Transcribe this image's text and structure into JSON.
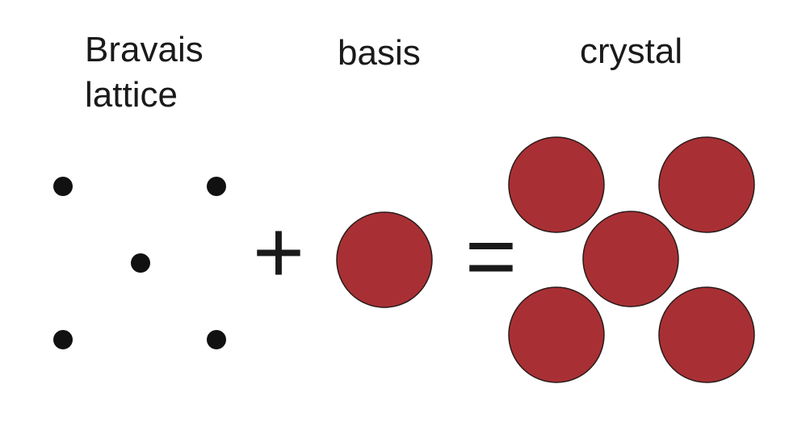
{
  "labels": {
    "bravais_line1": "Bravais",
    "bravais_line2": "lattice",
    "basis": "basis",
    "crystal": "crystal"
  },
  "operators": {
    "plus": "+",
    "equals": "="
  },
  "colors": {
    "atom_fill": "#a83034",
    "atom_stroke": "#2a1a1a",
    "lattice_point": "#111111",
    "text": "#1a1a1a"
  },
  "icons": {
    "lattice_point": "filled-dot",
    "atom": "filled-circle"
  }
}
